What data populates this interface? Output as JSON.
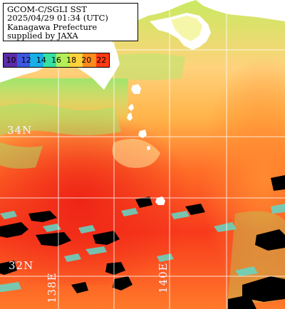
{
  "caption": {
    "line1": "GCOM-C/SGLI SST",
    "line2": "2025/04/29 01:34 (UTC)",
    "line3": "Kanagawa Prefecture",
    "line4": "supplied by JAXA"
  },
  "legend": {
    "labels": [
      "10",
      "12",
      "14",
      "16",
      "18",
      "20",
      "22"
    ],
    "colors": [
      "#5a2ca8",
      "#3a58e0",
      "#19aee8",
      "#36e0a0",
      "#b4ef58",
      "#ffd23a",
      "#ff8a1e",
      "#ff3a14"
    ]
  },
  "grid": {
    "lat_labels": [
      "34N",
      "32N"
    ],
    "lon_labels": [
      "138E",
      "140E"
    ]
  },
  "colors": {
    "land": "#ffffff",
    "grid_line": "#ffffff",
    "sea_cool": "#a4e860",
    "sea_mid": "#ffc040",
    "sea_warm": "#ff5a1e",
    "sea_hot": "#f52e18",
    "cloud_mask": "#000000"
  }
}
